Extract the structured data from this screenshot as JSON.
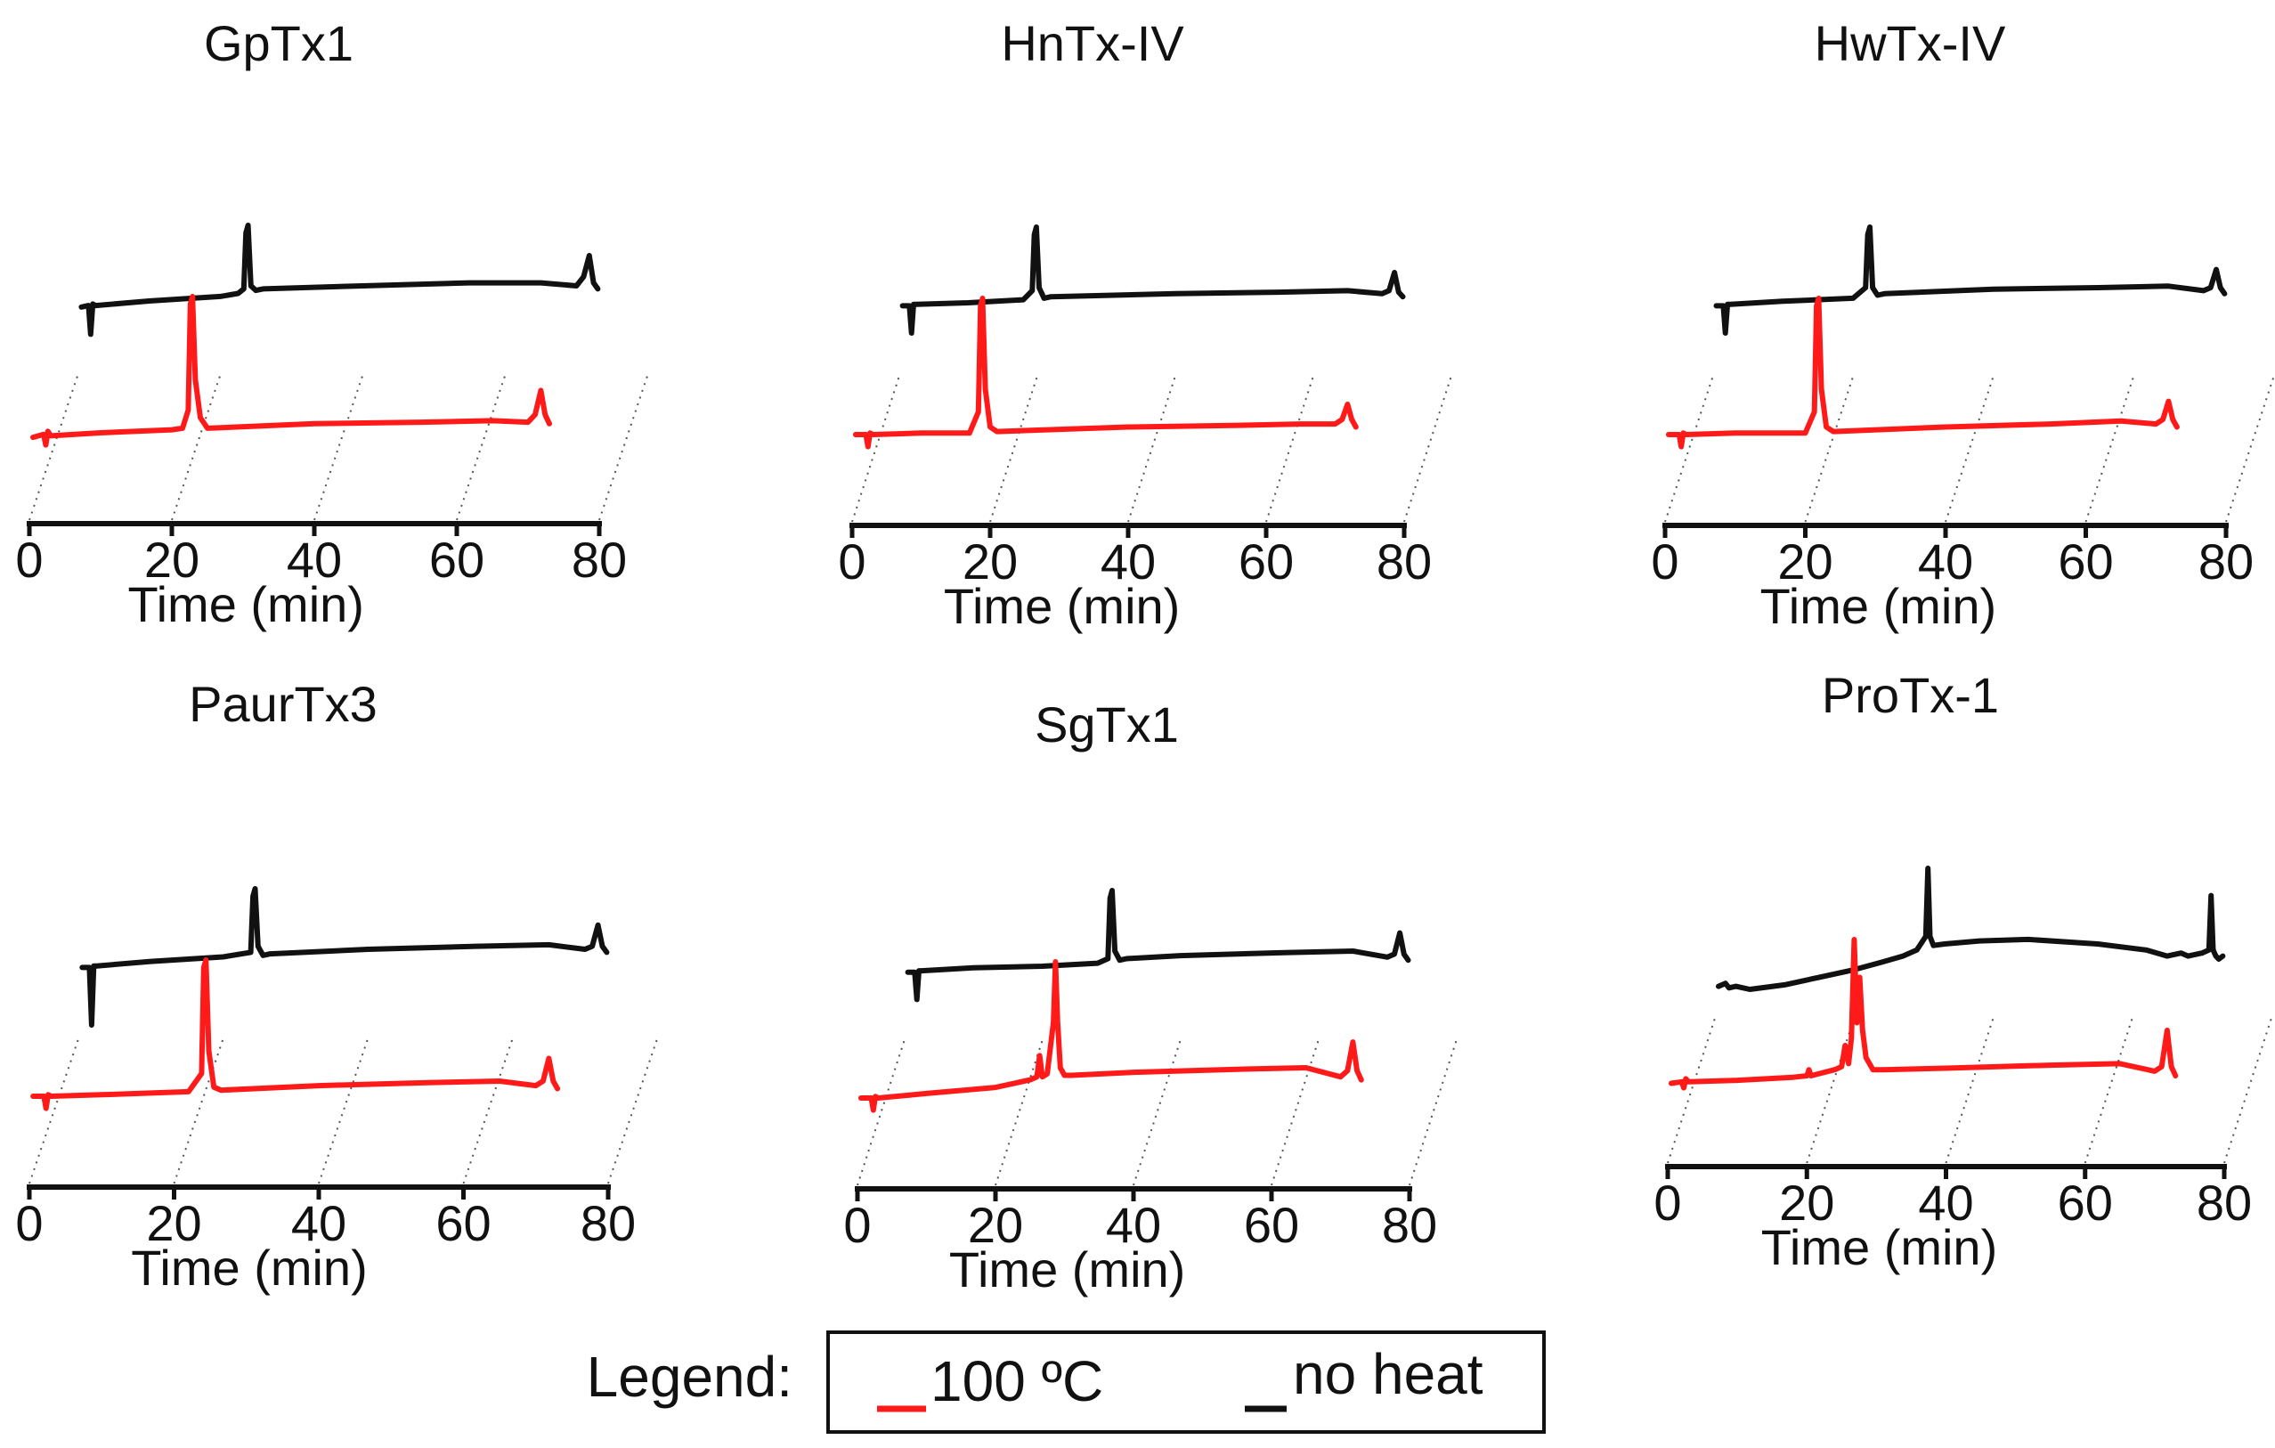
{
  "legend": {
    "label": "Legend:",
    "entries": [
      {
        "name": "100 ºC",
        "color": "#ff1a1a"
      },
      {
        "name": "no heat",
        "color": "#111111"
      }
    ]
  },
  "chart_data": [
    {
      "type": "line",
      "title": "GpTx1",
      "xlabel": "Time (min)",
      "ylabel": "",
      "xlim": [
        0,
        80
      ],
      "xticks": [
        0,
        20,
        40,
        60,
        80
      ],
      "series": [
        {
          "name": "100 ºC",
          "color": "#ff1a1a",
          "x": [
            0.5,
            2,
            2.3,
            2.6,
            3,
            10,
            20,
            21.5,
            22.3,
            22.6,
            22.9,
            23.3,
            24,
            25,
            40,
            55,
            65,
            70,
            71,
            71.8,
            72.4,
            73
          ],
          "y": [
            7,
            9,
            2,
            11,
            8,
            10,
            12,
            13,
            25,
            95,
            100,
            45,
            20,
            13,
            16,
            17,
            18,
            17,
            22,
            38,
            22,
            16
          ]
        },
        {
          "name": "no heat",
          "color": "#111111",
          "x": [
            0.5,
            1.5,
            1.8,
            2.1,
            2.5,
            10,
            20,
            22.5,
            23.3,
            23.6,
            23.9,
            24.3,
            25,
            26,
            40,
            55,
            65,
            70,
            71,
            71.8,
            72.4,
            73
          ],
          "y": [
            46,
            47,
            28,
            48,
            47,
            50,
            53,
            55,
            58,
            95,
            100,
            60,
            57,
            58,
            60,
            62,
            62,
            60,
            66,
            80,
            62,
            58
          ]
        }
      ]
    },
    {
      "type": "line",
      "title": "HnTx-IV",
      "xlabel": "Time (min)",
      "ylabel": "",
      "xlim": [
        0,
        80
      ],
      "xticks": [
        0,
        20,
        40,
        60,
        80
      ],
      "series": [
        {
          "name": "100 ºC",
          "color": "#ff1a1a",
          "x": [
            0.5,
            2,
            2.3,
            2.6,
            3,
            10,
            17,
            18.3,
            18.6,
            18.9,
            19.3,
            20,
            21,
            40,
            55,
            65,
            70,
            71,
            71.8,
            72.4,
            73
          ],
          "y": [
            10,
            10,
            2,
            11,
            10,
            11,
            11,
            25,
            95,
            100,
            40,
            15,
            12,
            15,
            16,
            17,
            17,
            20,
            30,
            20,
            15
          ]
        },
        {
          "name": "no heat",
          "color": "#111111",
          "x": [
            0.5,
            1.5,
            1.8,
            2.1,
            2.5,
            10,
            18,
            19.3,
            19.6,
            19.9,
            20.3,
            21,
            22,
            40,
            55,
            65,
            70,
            71,
            71.8,
            72.4,
            73
          ],
          "y": [
            48,
            48,
            30,
            49,
            49,
            50,
            52,
            58,
            95,
            100,
            60,
            53,
            54,
            56,
            57,
            58,
            56,
            58,
            70,
            57,
            54
          ]
        }
      ]
    },
    {
      "type": "line",
      "title": "HwTx-IV",
      "xlabel": "Time (min)",
      "ylabel": "",
      "xlim": [
        0,
        80
      ],
      "xticks": [
        0,
        20,
        40,
        60,
        80
      ],
      "series": [
        {
          "name": "100 ºC",
          "color": "#ff1a1a",
          "x": [
            0.5,
            2,
            2.3,
            2.6,
            3,
            10,
            20,
            21.3,
            21.6,
            21.9,
            22.3,
            23,
            24,
            40,
            55,
            65,
            70,
            71,
            71.8,
            72.4,
            73
          ],
          "y": [
            10,
            10,
            2,
            11,
            10,
            11,
            11,
            25,
            95,
            100,
            40,
            15,
            12,
            15,
            17,
            19,
            17,
            20,
            32,
            20,
            15
          ]
        },
        {
          "name": "no heat",
          "color": "#111111",
          "x": [
            0.5,
            1.5,
            1.8,
            2.1,
            2.5,
            10,
            20,
            21.8,
            22.1,
            22.4,
            22.8,
            23.5,
            24.5,
            40,
            55,
            65,
            70,
            71,
            71.8,
            72.4,
            73
          ],
          "y": [
            48,
            48,
            30,
            49,
            49,
            51,
            53,
            60,
            95,
            100,
            60,
            55,
            56,
            59,
            60,
            61,
            58,
            60,
            72,
            60,
            56
          ]
        }
      ]
    },
    {
      "type": "line",
      "title": "PaurTx3",
      "xlabel": "Time (min)",
      "ylabel": "",
      "xlim": [
        0,
        80
      ],
      "xticks": [
        0,
        20,
        40,
        60,
        80
      ],
      "series": [
        {
          "name": "100 ºC",
          "color": "#ff1a1a",
          "x": [
            0.5,
            2,
            2.3,
            2.6,
            3,
            10,
            22,
            23.8,
            24.1,
            24.4,
            24.8,
            25.5,
            26.5,
            40,
            55,
            65,
            70,
            71,
            71.8,
            72.4,
            73
          ],
          "y": [
            10,
            10,
            2,
            11,
            10,
            11,
            13,
            25,
            95,
            100,
            40,
            16,
            14,
            17,
            19,
            20,
            17,
            20,
            35,
            20,
            15
          ]
        },
        {
          "name": "no heat",
          "color": "#111111",
          "x": [
            0.5,
            1.5,
            1.8,
            2.1,
            2.5,
            10,
            20,
            23.8,
            24.1,
            24.4,
            24.8,
            25.5,
            26.5,
            40,
            55,
            65,
            70,
            71,
            71.8,
            72.4,
            73
          ],
          "y": [
            48,
            48,
            10,
            49,
            49,
            52,
            55,
            58,
            95,
            100,
            62,
            56,
            57,
            60,
            62,
            63,
            60,
            62,
            76,
            62,
            58
          ]
        }
      ]
    },
    {
      "type": "line",
      "title": "SgTx1",
      "xlabel": "Time (min)",
      "ylabel": "",
      "xlim": [
        0,
        80
      ],
      "xticks": [
        0,
        20,
        40,
        60,
        80
      ],
      "series": [
        {
          "name": "100 ºC",
          "color": "#ff1a1a",
          "x": [
            0.5,
            2,
            2.3,
            2.6,
            3,
            10,
            20,
            25,
            26,
            26.4,
            26.8,
            27.5,
            28.4,
            28.7,
            29,
            29.4,
            30,
            31,
            40,
            55,
            65,
            70,
            71,
            71.8,
            72.4,
            73
          ],
          "y": [
            10,
            10,
            2,
            11,
            10,
            13,
            17,
            22,
            24,
            38,
            24,
            26,
            60,
            100,
            60,
            30,
            25,
            25,
            27,
            29,
            30,
            24,
            28,
            47,
            28,
            22
          ]
        },
        {
          "name": "no heat",
          "color": "#111111",
          "x": [
            0.5,
            1.5,
            1.8,
            2.1,
            2.5,
            10,
            20,
            28,
            29.5,
            29.8,
            30.1,
            30.5,
            31.2,
            32.2,
            40,
            55,
            65,
            70,
            71,
            71.8,
            72.4,
            73
          ],
          "y": [
            46,
            46,
            28,
            47,
            47,
            49,
            50,
            52,
            55,
            95,
            100,
            60,
            54,
            55,
            57,
            59,
            60,
            56,
            58,
            72,
            58,
            54
          ]
        }
      ]
    },
    {
      "type": "line",
      "title": "ProTx-1",
      "xlabel": "Time (min)",
      "ylabel": "",
      "xlim": [
        0,
        80
      ],
      "xticks": [
        0,
        20,
        40,
        60,
        80
      ],
      "series": [
        {
          "name": "100 ºC",
          "color": "#ff1a1a",
          "x": [
            0.5,
            2,
            2.3,
            2.6,
            3,
            10,
            18,
            20,
            20.3,
            20.6,
            24,
            25,
            25.5,
            26,
            26.4,
            26.8,
            27.2,
            27.6,
            28,
            28.5,
            29.5,
            31,
            40,
            55,
            65,
            70,
            71,
            71.8,
            72.4,
            73
          ],
          "y": [
            5,
            6,
            2,
            8,
            6,
            7,
            9,
            10,
            14,
            10,
            14,
            16,
            30,
            18,
            35,
            100,
            45,
            75,
            40,
            22,
            14,
            14,
            15,
            17,
            18,
            13,
            16,
            40,
            16,
            10
          ]
        },
        {
          "name": "no heat",
          "color": "#111111",
          "x": [
            0.5,
            1.5,
            2,
            3,
            5,
            10,
            15,
            20,
            24,
            27,
            29,
            30.3,
            30.6,
            30.9,
            31.4,
            33,
            38,
            45,
            55,
            62,
            65,
            67,
            68,
            70,
            71,
            71.3,
            71.6,
            72,
            72.4,
            73
          ],
          "y": [
            22,
            24,
            21,
            22,
            20,
            23,
            28,
            33,
            38,
            42,
            46,
            55,
            100,
            55,
            49,
            50,
            52,
            53,
            50,
            46,
            42,
            44,
            42,
            44,
            46,
            82,
            46,
            42,
            40,
            42
          ]
        }
      ]
    }
  ]
}
